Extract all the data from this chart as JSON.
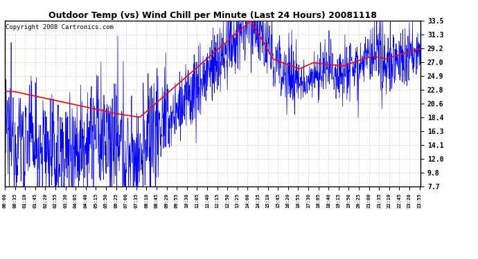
{
  "title": "Outdoor Temp (vs) Wind Chill per Minute (Last 24 Hours) 20081118",
  "copyright": "Copyright 2008 Cartronics.com",
  "yticks": [
    7.7,
    9.8,
    12.0,
    14.1,
    16.3,
    18.4,
    20.6,
    22.8,
    24.9,
    27.0,
    29.2,
    31.3,
    33.5
  ],
  "ylim": [
    7.7,
    33.5
  ],
  "xtick_labels": [
    "00:00",
    "00:35",
    "01:10",
    "01:45",
    "02:20",
    "02:55",
    "03:30",
    "04:05",
    "04:40",
    "05:15",
    "05:50",
    "06:25",
    "07:00",
    "07:35",
    "08:10",
    "08:45",
    "09:20",
    "09:55",
    "10:30",
    "11:05",
    "11:40",
    "12:15",
    "12:50",
    "13:25",
    "14:00",
    "14:35",
    "15:10",
    "15:45",
    "16:20",
    "16:55",
    "17:30",
    "18:05",
    "18:40",
    "19:15",
    "19:50",
    "20:25",
    "21:00",
    "21:35",
    "22:10",
    "22:45",
    "23:20",
    "23:55"
  ],
  "background_color": "#ffffff",
  "plot_bg_color": "#ffffff",
  "grid_color": "#c8c8c8",
  "blue_color": "#0000ff",
  "red_color": "#ff0000",
  "title_fontsize": 9,
  "copyright_fontsize": 6.5
}
